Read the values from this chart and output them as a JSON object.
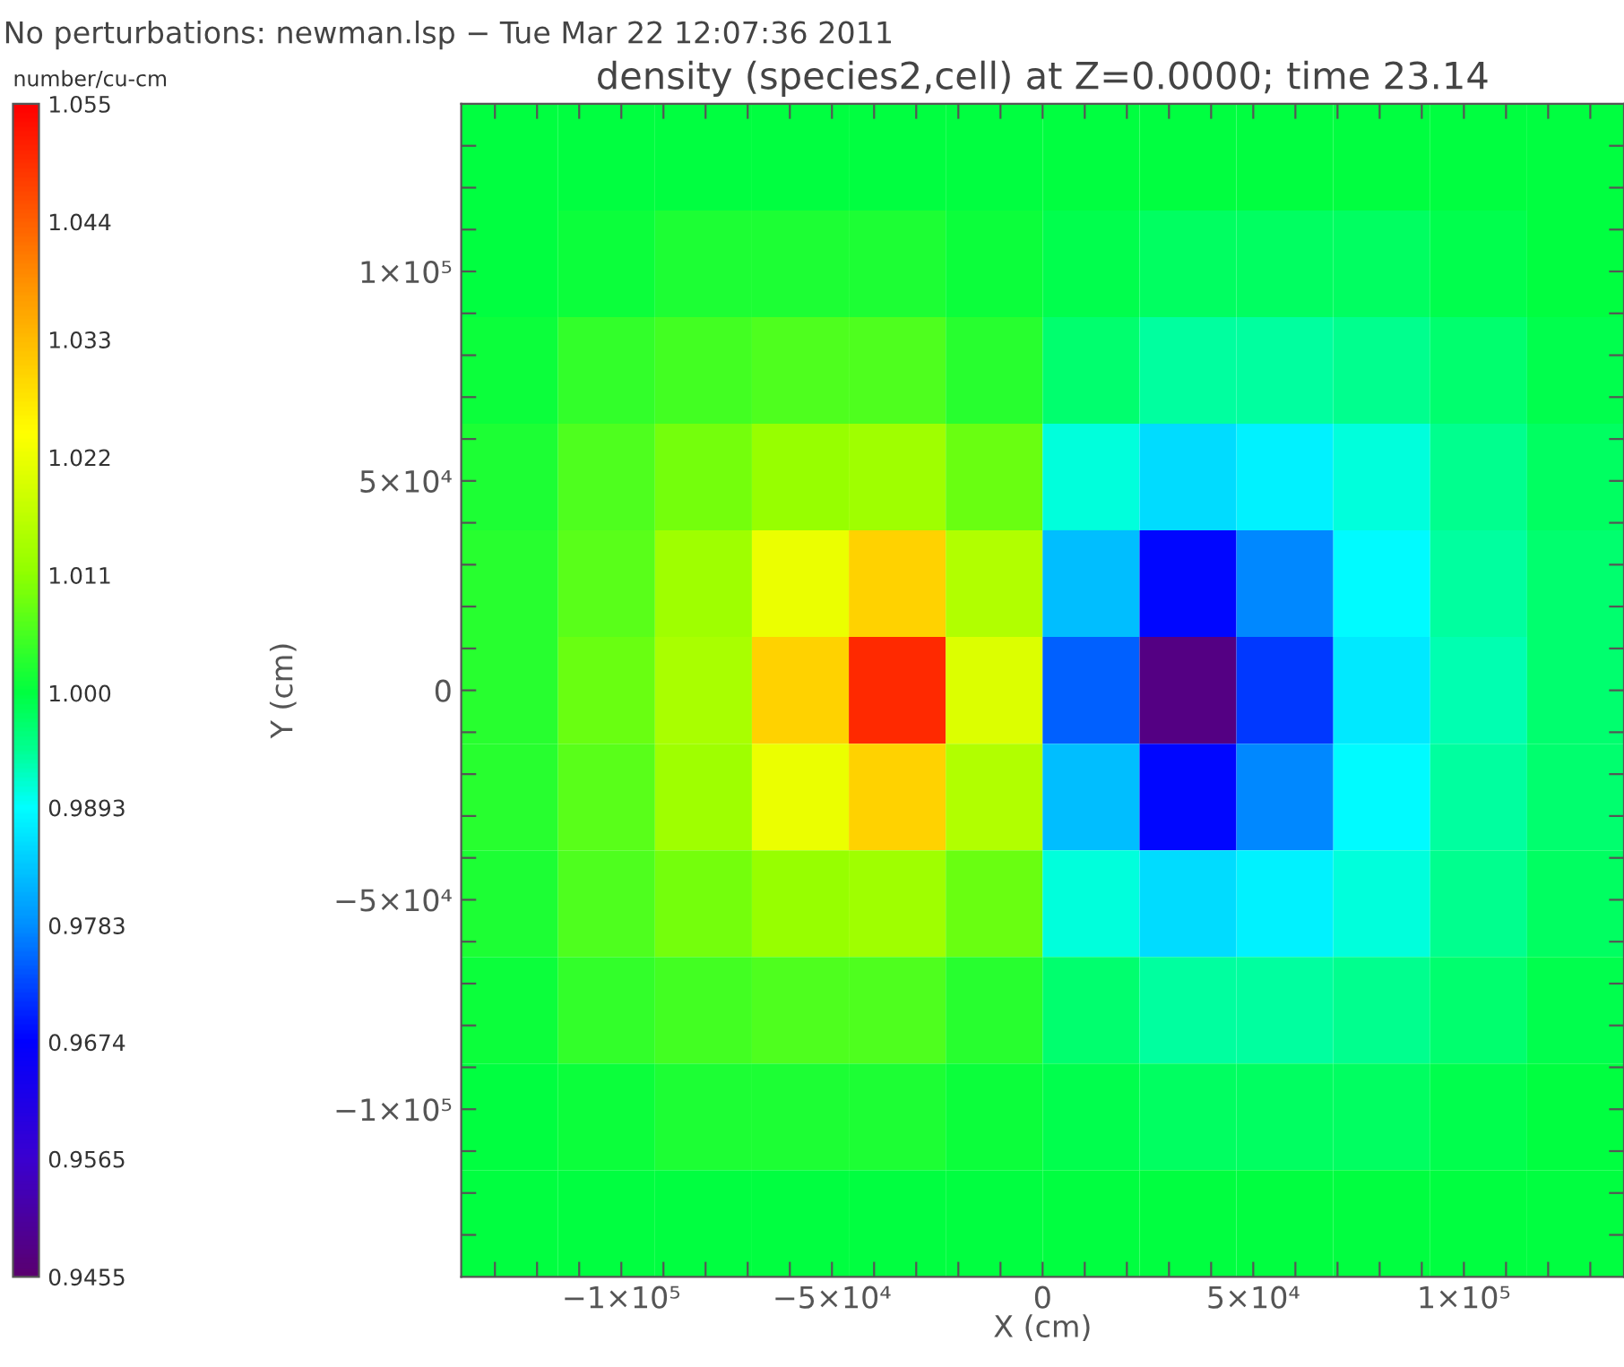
{
  "chart_data": {
    "type": "heatmap",
    "title": "density (species2,cell) at Z=0.0000; time 23.14",
    "xlabel": "X (cm)",
    "ylabel": "Y (cm)",
    "clabel": "number/cu-cm",
    "annotations": [
      "No perturbations: newman.lsp − Tue Mar 22 12:07:36 2011"
    ],
    "x": [
      -126500,
      -103500,
      -80500,
      -57500,
      -34500,
      -11500,
      11500,
      34500,
      57500,
      80500,
      103500,
      126500
    ],
    "y": [
      127273,
      101818,
      76364,
      50909,
      25455,
      0,
      -25455,
      -50909,
      -76364,
      -101818,
      -127273
    ],
    "xlim": [
      -138000,
      138000
    ],
    "ylim": [
      -140000,
      140000
    ],
    "xticks": [
      {
        "value": -130000,
        "label": null
      },
      {
        "value": -120000,
        "label": null
      },
      {
        "value": -110000,
        "label": null
      },
      {
        "value": -100000,
        "label": "−1×10⁵"
      },
      {
        "value": -90000,
        "label": null
      },
      {
        "value": -80000,
        "label": null
      },
      {
        "value": -70000,
        "label": null
      },
      {
        "value": -60000,
        "label": null
      },
      {
        "value": -50000,
        "label": "−5×10⁴"
      },
      {
        "value": -40000,
        "label": null
      },
      {
        "value": -30000,
        "label": null
      },
      {
        "value": -20000,
        "label": null
      },
      {
        "value": -10000,
        "label": null
      },
      {
        "value": 0,
        "label": "0"
      },
      {
        "value": 10000,
        "label": null
      },
      {
        "value": 20000,
        "label": null
      },
      {
        "value": 30000,
        "label": null
      },
      {
        "value": 40000,
        "label": null
      },
      {
        "value": 50000,
        "label": "5×10⁴"
      },
      {
        "value": 60000,
        "label": null
      },
      {
        "value": 70000,
        "label": null
      },
      {
        "value": 80000,
        "label": null
      },
      {
        "value": 90000,
        "label": null
      },
      {
        "value": 100000,
        "label": "1×10⁵"
      },
      {
        "value": 110000,
        "label": null
      },
      {
        "value": 120000,
        "label": null
      },
      {
        "value": 130000,
        "label": null
      }
    ],
    "yticks": [
      {
        "value": -130000,
        "label": null
      },
      {
        "value": -120000,
        "label": null
      },
      {
        "value": -110000,
        "label": null
      },
      {
        "value": -100000,
        "label": "−1×10⁵"
      },
      {
        "value": -90000,
        "label": null
      },
      {
        "value": -80000,
        "label": null
      },
      {
        "value": -70000,
        "label": null
      },
      {
        "value": -60000,
        "label": null
      },
      {
        "value": -50000,
        "label": "−5×10⁴"
      },
      {
        "value": -40000,
        "label": null
      },
      {
        "value": -30000,
        "label": null
      },
      {
        "value": -20000,
        "label": null
      },
      {
        "value": -10000,
        "label": null
      },
      {
        "value": 0,
        "label": "0"
      },
      {
        "value": 10000,
        "label": null
      },
      {
        "value": 20000,
        "label": null
      },
      {
        "value": 30000,
        "label": null
      },
      {
        "value": 40000,
        "label": null
      },
      {
        "value": 50000,
        "label": "5×10⁴"
      },
      {
        "value": 60000,
        "label": null
      },
      {
        "value": 70000,
        "label": null
      },
      {
        "value": 80000,
        "label": null
      },
      {
        "value": 90000,
        "label": null
      },
      {
        "value": 100000,
        "label": "1×10⁵"
      },
      {
        "value": 110000,
        "label": null
      },
      {
        "value": 120000,
        "label": null
      },
      {
        "value": 130000,
        "label": null
      }
    ],
    "clim": [
      0.9455,
      1.055
    ],
    "cticks": [
      0.9455,
      0.9565,
      0.9674,
      0.9783,
      0.9893,
      {
        "value": 1.0,
        "label": "1.000"
      },
      1.011,
      1.022,
      1.033,
      1.044,
      1.055
    ],
    "cells": [
      [
        1.0,
        1.0,
        1.0,
        1.0,
        1.0,
        1.0,
        1.0,
        1.0,
        1.0,
        1.0,
        1.0,
        1.0
      ],
      [
        1.0,
        1.001,
        1.002,
        1.002,
        1.002,
        1.001,
        0.999,
        0.998,
        0.998,
        0.998,
        0.999,
        1.0
      ],
      [
        1.001,
        1.004,
        1.005,
        1.006,
        1.006,
        1.003,
        0.997,
        0.994,
        0.994,
        0.995,
        0.997,
        0.999
      ],
      [
        1.002,
        1.006,
        1.009,
        1.012,
        1.013,
        1.008,
        0.991,
        0.986,
        0.988,
        0.991,
        0.995,
        0.998
      ],
      [
        1.003,
        1.007,
        1.013,
        1.022,
        1.03,
        1.015,
        0.983,
        0.968,
        0.978,
        0.989,
        0.994,
        0.997
      ],
      [
        1.003,
        1.008,
        1.014,
        1.03,
        1.05,
        1.02,
        0.975,
        0.948,
        0.972,
        0.987,
        0.993,
        0.997
      ],
      [
        1.003,
        1.007,
        1.013,
        1.022,
        1.03,
        1.015,
        0.983,
        0.968,
        0.978,
        0.989,
        0.994,
        0.997
      ],
      [
        1.002,
        1.006,
        1.009,
        1.012,
        1.013,
        1.008,
        0.991,
        0.986,
        0.988,
        0.991,
        0.995,
        0.998
      ],
      [
        1.001,
        1.004,
        1.005,
        1.006,
        1.006,
        1.003,
        0.997,
        0.994,
        0.994,
        0.995,
        0.997,
        0.999
      ],
      [
        1.0,
        1.001,
        1.002,
        1.002,
        1.002,
        1.001,
        0.999,
        0.998,
        0.998,
        0.998,
        0.999,
        1.0
      ],
      [
        1.0,
        1.0,
        1.0,
        1.0,
        1.0,
        1.0,
        1.0,
        1.0,
        1.0,
        1.0,
        1.0,
        1.0
      ]
    ]
  }
}
